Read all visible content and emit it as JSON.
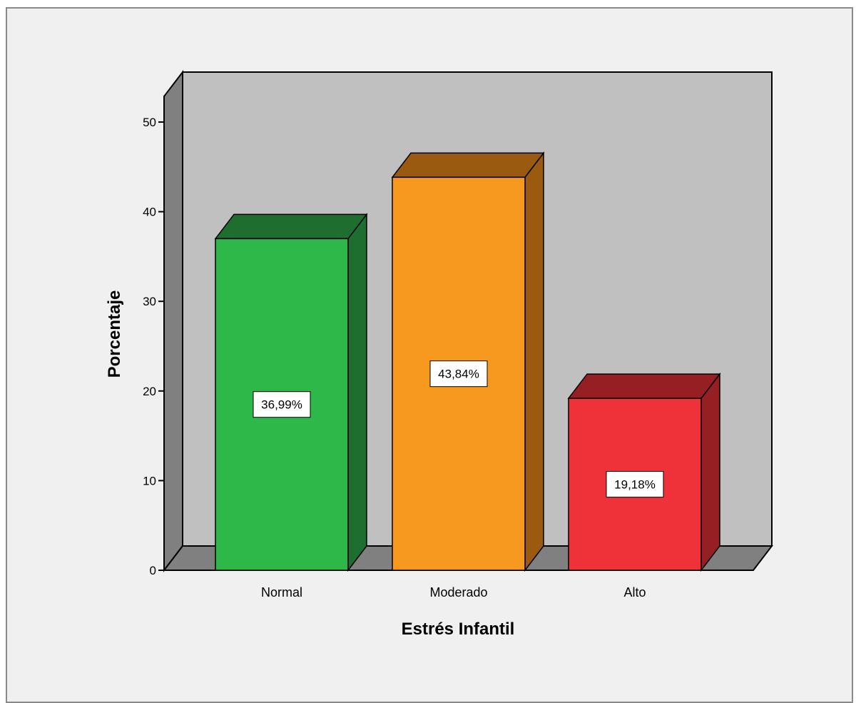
{
  "chart_data": {
    "type": "bar",
    "title": "",
    "xlabel": "Estrés Infantil",
    "ylabel": "Porcentaje",
    "categories": [
      "Normal",
      "Moderado",
      "Alto"
    ],
    "values": [
      36.99,
      43.84,
      19.18
    ],
    "data_labels": [
      "36,99%",
      "43,84%",
      "19,18%"
    ],
    "ylim": [
      0,
      50
    ],
    "yticks": [
      0,
      10,
      20,
      30,
      40,
      50
    ],
    "grid": false,
    "style": "3d",
    "colors": {
      "front": [
        "#2fb84a",
        "#f8991f",
        "#ef323a"
      ],
      "side": [
        "#1e6e30",
        "#9a5b10",
        "#951f23"
      ],
      "top": [
        "#1e6e30",
        "#9a5b10",
        "#951f23"
      ],
      "back_wall": "#c0c0c0",
      "side_wall": "#808080",
      "floor": "#808080",
      "background": "#f0f0f0"
    }
  }
}
